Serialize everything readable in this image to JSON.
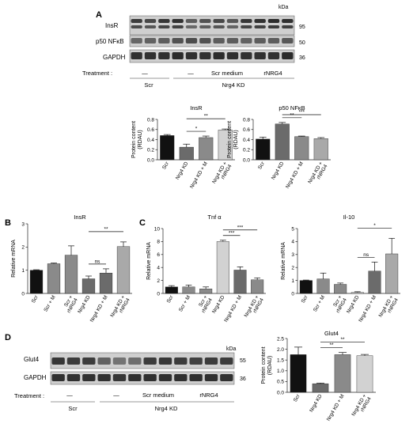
{
  "panels": {
    "A": "A",
    "B": "B",
    "C": "C",
    "D": "D"
  },
  "colors": {
    "black": "#111111",
    "dark_gray": "#6b6b6b",
    "mid_gray": "#8a8a8a",
    "light_gray": "#d2d2d2",
    "mid_gray2": "#a9a9a9",
    "blot_bg": "#cfcfcf",
    "band": "#262626"
  },
  "blot_A": {
    "kda_label": "kDa",
    "rows": [
      {
        "label": "InsR",
        "mw": "95"
      },
      {
        "label": "p50 NFκB",
        "mw": "50"
      },
      {
        "label": "GAPDH",
        "mw": "36"
      }
    ],
    "treatment_label": "Treatment :",
    "treatment_items": [
      "—",
      "—",
      "Scr medium",
      "rNRG4"
    ],
    "group_labels": [
      "Scr",
      "Nrg4 KD"
    ]
  },
  "blot_D": {
    "kda_label": "kDa",
    "rows": [
      {
        "label": "Glut4",
        "mw": "55"
      },
      {
        "label": "GAPDH",
        "mw": "36"
      }
    ],
    "treatment_label": "Treatment :",
    "treatment_items": [
      "—",
      "—",
      "Scr medium",
      "rNRG4"
    ],
    "group_labels": [
      "Scr",
      "Nrg4 KD"
    ]
  },
  "chart_data": [
    {
      "id": "A-InsR",
      "type": "bar",
      "title": "InsR",
      "ylabel": "Protein content\n(RDAU)",
      "ylim": [
        0,
        0.8
      ],
      "yticks": [
        "0.0",
        "0.2",
        "0.4",
        "0.6",
        "0.8"
      ],
      "categories": [
        "Scr",
        "Nrg4 KD",
        "Nrg4 KD + M",
        "Nrg4 KD +\nrNRG4"
      ],
      "values": [
        0.48,
        0.25,
        0.44,
        0.59
      ],
      "errors": [
        0.02,
        0.06,
        0.03,
        0.02
      ],
      "colors": [
        "#111111",
        "#6b6b6b",
        "#8a8a8a",
        "#d2d2d2"
      ],
      "significance": [
        {
          "from": 1,
          "to": 2,
          "label": "*"
        },
        {
          "from": 1,
          "to": 3,
          "label": "**"
        }
      ]
    },
    {
      "id": "A-p50",
      "type": "bar",
      "title": "p50 NFκB",
      "ylabel": "Protein content\n(RDAU)",
      "ylim": [
        0,
        0.8
      ],
      "yticks": [
        "0.0",
        "0.2",
        "0.4",
        "0.6",
        "0.8"
      ],
      "categories": [
        "Scr",
        "Nrg4 KD",
        "Nrg4 KD + M",
        "Nrg4 KD +\nrNRG4"
      ],
      "values": [
        0.41,
        0.71,
        0.46,
        0.42
      ],
      "errors": [
        0.04,
        0.03,
        0.01,
        0.02
      ],
      "colors": [
        "#111111",
        "#6b6b6b",
        "#8a8a8a",
        "#a9a9a9"
      ],
      "significance": [
        {
          "from": 1,
          "to": 2,
          "label": "**"
        },
        {
          "from": 1,
          "to": 3,
          "label": "***"
        }
      ]
    },
    {
      "id": "B-InsR",
      "type": "bar",
      "title": "InsR",
      "ylabel": "Relative mRNA",
      "ylim": [
        0,
        3
      ],
      "yticks": [
        "0",
        "1",
        "2",
        "3"
      ],
      "categories": [
        "Scr",
        "Scr + M",
        "Scr +\nrNRG4",
        "Nrg4 KD",
        "Nrg4 KD + M",
        "Nrg4 KD +\nrNRG4"
      ],
      "values": [
        1.0,
        1.28,
        1.65,
        0.63,
        0.88,
        2.02
      ],
      "errors": [
        0.02,
        0.03,
        0.4,
        0.12,
        0.18,
        0.2
      ],
      "colors": [
        "#111111",
        "#8a8a8a",
        "#8a8a8a",
        "#6b6b6b",
        "#6b6b6b",
        "#a9a9a9"
      ],
      "significance": [
        {
          "from": 3,
          "to": 4,
          "label": "ns"
        },
        {
          "from": 3,
          "to": 5,
          "label": "**"
        }
      ]
    },
    {
      "id": "C-Tnfa",
      "type": "bar",
      "title": "Tnf α",
      "ylabel": "Relative mRNA",
      "ylim": [
        0,
        10
      ],
      "yticks": [
        "0",
        "2",
        "4",
        "6",
        "8",
        "10"
      ],
      "categories": [
        "Scr",
        "Scr + M",
        "Scr +\nrNRG4",
        "Nrg4 KD",
        "Nrg4 KD + M",
        "Nrg4 KD +\nrNRG4"
      ],
      "values": [
        1.0,
        1.0,
        0.7,
        8.0,
        3.6,
        2.1
      ],
      "errors": [
        0.2,
        0.3,
        0.3,
        0.2,
        0.5,
        0.3
      ],
      "colors": [
        "#111111",
        "#8a8a8a",
        "#8a8a8a",
        "#d2d2d2",
        "#6b6b6b",
        "#8a8a8a"
      ],
      "significance": [
        {
          "from": 3,
          "to": 4,
          "label": "***"
        },
        {
          "from": 3,
          "to": 5,
          "label": "***"
        }
      ]
    },
    {
      "id": "C-Il10",
      "type": "bar",
      "title": "Il-10",
      "ylabel": "Relative mRNA",
      "ylim": [
        0,
        5
      ],
      "yticks": [
        "0",
        "1",
        "2",
        "3",
        "4",
        "5"
      ],
      "categories": [
        "Scr",
        "Scr + M",
        "Scr +\nrNRG4",
        "Nrg4 KD",
        "Nrg4 KD + M",
        "Nrg4 KD +\nrNRG4"
      ],
      "values": [
        1.0,
        1.12,
        0.7,
        0.08,
        1.72,
        3.05
      ],
      "errors": [
        0.03,
        0.45,
        0.1,
        0.05,
        0.7,
        1.2
      ],
      "colors": [
        "#111111",
        "#8a8a8a",
        "#8a8a8a",
        "#d2d2d2",
        "#6b6b6b",
        "#a9a9a9"
      ],
      "significance": [
        {
          "from": 3,
          "to": 4,
          "label": "ns"
        },
        {
          "from": 3,
          "to": 5,
          "label": "*"
        }
      ]
    },
    {
      "id": "D-Glut4",
      "type": "bar",
      "title": "Glut4",
      "ylabel": "Protein content\n(RDAU)",
      "ylim": [
        0,
        2.5
      ],
      "yticks": [
        "0.0",
        "0.5",
        "1.0",
        "1.5",
        "2.0",
        "2.5"
      ],
      "categories": [
        "Scr",
        "Nrg4 KD",
        "Nrg4 KD + M",
        "Nrg4 KD +\nrNRG4"
      ],
      "values": [
        1.75,
        0.4,
        1.75,
        1.7
      ],
      "errors": [
        0.35,
        0.03,
        0.1,
        0.06
      ],
      "colors": [
        "#111111",
        "#6b6b6b",
        "#8a8a8a",
        "#d2d2d2"
      ],
      "significance": [
        {
          "from": 1,
          "to": 2,
          "label": "**"
        },
        {
          "from": 1,
          "to": 3,
          "label": "**"
        }
      ]
    }
  ]
}
